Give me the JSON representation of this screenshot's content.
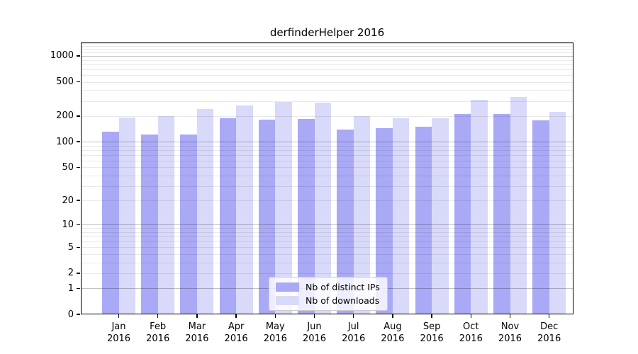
{
  "chart_data": {
    "type": "bar",
    "title": "derfinderHelper 2016",
    "categories": [
      {
        "month": "Jan",
        "year": "2016"
      },
      {
        "month": "Feb",
        "year": "2016"
      },
      {
        "month": "Mar",
        "year": "2016"
      },
      {
        "month": "Apr",
        "year": "2016"
      },
      {
        "month": "May",
        "year": "2016"
      },
      {
        "month": "Jun",
        "year": "2016"
      },
      {
        "month": "Jul",
        "year": "2016"
      },
      {
        "month": "Aug",
        "year": "2016"
      },
      {
        "month": "Sep",
        "year": "2016"
      },
      {
        "month": "Oct",
        "year": "2016"
      },
      {
        "month": "Nov",
        "year": "2016"
      },
      {
        "month": "Dec",
        "year": "2016"
      }
    ],
    "series": [
      {
        "name": "Nb of distinct IPs",
        "color": "#a9a9f6",
        "values": [
          131,
          121,
          121,
          188,
          181,
          186,
          139,
          145,
          150,
          212,
          213,
          179
        ]
      },
      {
        "name": "Nb of downloads",
        "color": "#d9d9fa",
        "values": [
          193,
          198,
          240,
          265,
          293,
          288,
          198,
          187,
          188,
          310,
          335,
          223
        ]
      }
    ],
    "y_ticks": [
      0,
      1,
      2,
      5,
      10,
      20,
      50,
      100,
      200,
      500,
      1000
    ],
    "y_minor_gridlines": [
      2,
      3,
      4,
      5,
      6,
      7,
      8,
      9,
      20,
      30,
      40,
      50,
      60,
      70,
      80,
      90,
      200,
      300,
      400,
      500,
      600,
      700,
      800,
      900,
      1100,
      1200,
      1300,
      1400
    ],
    "y_major_gridlines": [
      1,
      10,
      100,
      1000
    ],
    "scale": "log10(value+1)",
    "ylim": [
      0,
      1433
    ],
    "xlabel": "",
    "ylabel": "",
    "grid": true,
    "legend_position": "bottom-center"
  }
}
